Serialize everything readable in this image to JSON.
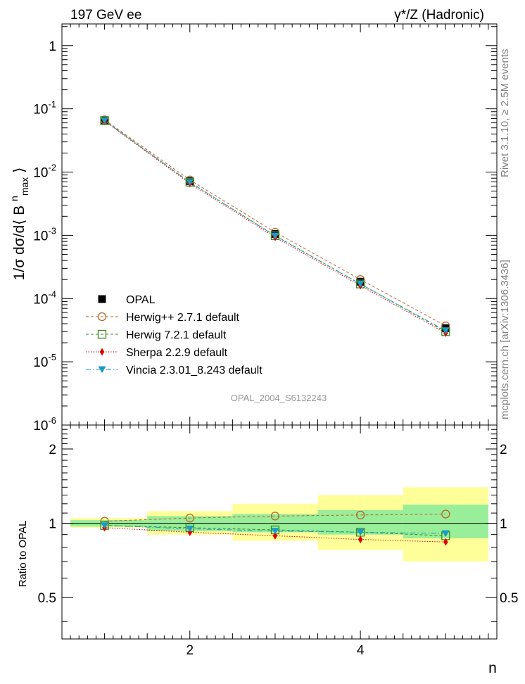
{
  "header": {
    "left": "197 GeV ee",
    "right": "γ*/Z (Hadronic)"
  },
  "side_labels": {
    "rivet": "Rivet 3.1.10, ≥ 2.5M events",
    "mcplots": "mcplots.cern.ch [arXiv:1306.3436]"
  },
  "chart_data": [
    {
      "type": "scatter",
      "panel": "main",
      "ylabel": "1/σ dσ/d⟨ B^n_max ⟩",
      "yscale": "log",
      "ylim": [
        1e-06,
        2.2
      ],
      "xlim": [
        0.5,
        5.6
      ],
      "yticks": [
        "1",
        "10^-1",
        "10^-2",
        "10^-3",
        "10^-4",
        "10^-5",
        "10^-6"
      ],
      "watermark": "OPAL_2004_S6132243",
      "legend_position": "lower-left",
      "x": [
        1,
        2,
        3,
        4,
        5
      ],
      "series": [
        {
          "name": "OPAL",
          "color": "#000000",
          "marker": "square-filled",
          "line": "none",
          "values": [
            0.066,
            0.0072,
            0.00105,
            0.000185,
            3.4e-05
          ]
        },
        {
          "name": "Herwig++ 2.7.1 default",
          "color": "#b8642a",
          "marker": "circle-open",
          "line": "dashed",
          "values": [
            0.067,
            0.0075,
            0.00112,
            0.0002,
            3.7e-05
          ]
        },
        {
          "name": "Herwig 7.2.1 default",
          "color": "#3a8a20",
          "marker": "square-open",
          "line": "dashed",
          "values": [
            0.065,
            0.0069,
            0.00099,
            0.00017,
            3e-05
          ]
        },
        {
          "name": "Sherpa 2.2.9 default",
          "color": "#e00000",
          "marker": "diamond-filled",
          "line": "dotted",
          "values": [
            0.064,
            0.0066,
            0.00093,
            0.00016,
            2.85e-05
          ]
        },
        {
          "name": "Vincia 2.3.01_8.243 default",
          "color": "#1a9bc8",
          "marker": "triangle-down-filled",
          "line": "dashdot",
          "values": [
            0.065,
            0.0069,
            0.00098,
            0.00017,
            3.1e-05
          ]
        }
      ]
    },
    {
      "type": "scatter",
      "panel": "ratio",
      "ylabel": "Ratio to OPAL",
      "xlabel": "n",
      "ylim": [
        0.34,
        2.5
      ],
      "yscale": "log",
      "yticks": [
        "0.5",
        "1",
        "2"
      ],
      "xticks": [
        "2",
        "4"
      ],
      "x": [
        1,
        2,
        3,
        4,
        5
      ],
      "bands": {
        "x_edges": [
          [
            0.6,
            1.5
          ],
          [
            1.5,
            2.5
          ],
          [
            2.5,
            3.5
          ],
          [
            3.5,
            4.5
          ],
          [
            4.5,
            5.5
          ]
        ],
        "stat_lo": [
          0.97,
          0.93,
          0.92,
          0.9,
          0.87
        ],
        "stat_hi": [
          1.03,
          1.07,
          1.09,
          1.13,
          1.19
        ],
        "total_lo": [
          0.96,
          0.9,
          0.85,
          0.78,
          0.7
        ],
        "total_hi": [
          1.05,
          1.12,
          1.2,
          1.3,
          1.4
        ]
      },
      "series": [
        {
          "name": "Herwig++ 2.7.1 default",
          "values": [
            1.02,
            1.05,
            1.07,
            1.08,
            1.09
          ]
        },
        {
          "name": "Herwig 7.2.1 default",
          "values": [
            0.98,
            0.96,
            0.94,
            0.92,
            0.89
          ]
        },
        {
          "name": "Sherpa 2.2.9 default",
          "values": [
            0.96,
            0.92,
            0.89,
            0.86,
            0.84
          ]
        },
        {
          "name": "Vincia 2.3.01_8.243 default",
          "values": [
            0.98,
            0.95,
            0.93,
            0.92,
            0.91
          ]
        }
      ]
    }
  ]
}
